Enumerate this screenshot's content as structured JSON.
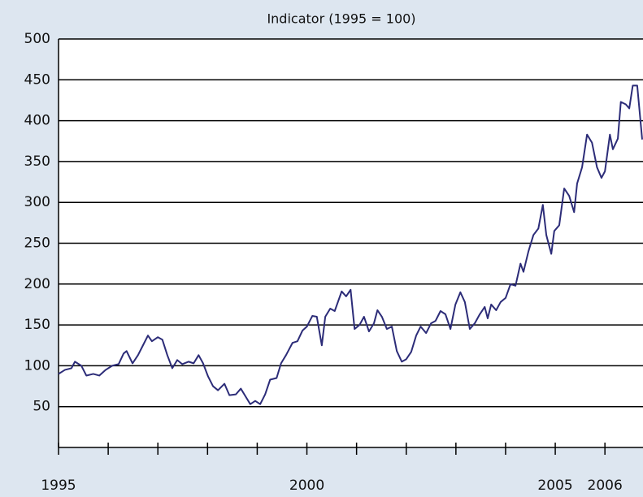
{
  "chart_data": {
    "type": "line",
    "title": "Indicator (1995 = 100)",
    "x": [
      1995.0,
      1995.13,
      1995.26,
      1995.33,
      1995.46,
      1995.56,
      1995.7,
      1995.82,
      1995.95,
      1996.08,
      1996.21,
      1996.31,
      1996.37,
      1996.49,
      1996.6,
      1996.7,
      1996.8,
      1996.88,
      1997.0,
      1997.09,
      1997.19,
      1997.29,
      1997.39,
      1997.49,
      1997.62,
      1997.72,
      1997.82,
      1997.91,
      1998.01,
      1998.11,
      1998.21,
      1998.34,
      1998.44,
      1998.57,
      1998.67,
      1998.76,
      1998.86,
      1998.96,
      1999.06,
      1999.16,
      1999.26,
      1999.39,
      1999.48,
      1999.58,
      1999.71,
      1999.81,
      1999.91,
      2000.0,
      2000.11,
      2000.2,
      2000.3,
      2000.37,
      2000.47,
      2000.56,
      2000.7,
      2000.79,
      2000.88,
      2000.96,
      2001.06,
      2001.15,
      2001.25,
      2001.35,
      2001.42,
      2001.51,
      2001.61,
      2001.71,
      2001.81,
      2001.91,
      2002.0,
      2002.1,
      2002.2,
      2002.29,
      2002.4,
      2002.5,
      2002.59,
      2002.69,
      2002.79,
      2002.89,
      2002.99,
      2003.09,
      2003.18,
      2003.28,
      2003.38,
      2003.48,
      2003.58,
      2003.64,
      2003.71,
      2003.81,
      2003.9,
      2004.0,
      2004.1,
      2004.2,
      2004.3,
      2004.36,
      2004.46,
      2004.56,
      2004.66,
      2004.75,
      2004.82,
      2004.92,
      2004.98,
      2005.08,
      2005.18,
      2005.28,
      2005.38,
      2005.44,
      2005.54,
      2005.64,
      2005.74,
      2005.84,
      2005.93,
      2006.0,
      2006.1,
      2006.16,
      2006.26,
      2006.32,
      2006.42,
      2006.49,
      2006.56,
      2006.65,
      2006.75
    ],
    "series": [
      {
        "color": "#2c2c78",
        "values": [
          90,
          95,
          97,
          105,
          100,
          88,
          90,
          88,
          95,
          100,
          102,
          115,
          118,
          103,
          113,
          125,
          137,
          130,
          135,
          132,
          113,
          97,
          107,
          102,
          105,
          103,
          113,
          103,
          87,
          75,
          70,
          78,
          64,
          65,
          72,
          63,
          53,
          57,
          53,
          65,
          83,
          85,
          103,
          113,
          128,
          130,
          143,
          148,
          161,
          160,
          125,
          160,
          170,
          167,
          191,
          185,
          193,
          145,
          150,
          160,
          142,
          152,
          168,
          160,
          145,
          148,
          118,
          105,
          108,
          117,
          137,
          148,
          140,
          152,
          155,
          167,
          163,
          145,
          175,
          190,
          178,
          145,
          152,
          163,
          172,
          158,
          175,
          168,
          178,
          183,
          200,
          198,
          225,
          215,
          240,
          260,
          268,
          297,
          260,
          237,
          265,
          272,
          317,
          308,
          288,
          323,
          343,
          383,
          373,
          343,
          330,
          338,
          383,
          365,
          378,
          423,
          420,
          415,
          443,
          443,
          377
        ]
      }
    ],
    "xlim": [
      1995,
      2006.75
    ],
    "xticks": [
      1995,
      2000,
      2005,
      2006
    ],
    "x_tick_marks": [
      1995,
      1996,
      1997,
      1998,
      1999,
      2000,
      2001,
      2002,
      2003,
      2004,
      2005,
      2006
    ],
    "ylim": [
      0,
      500
    ],
    "yticks": [
      50,
      100,
      150,
      200,
      250,
      300,
      350,
      400,
      450,
      500
    ],
    "grid": true
  }
}
